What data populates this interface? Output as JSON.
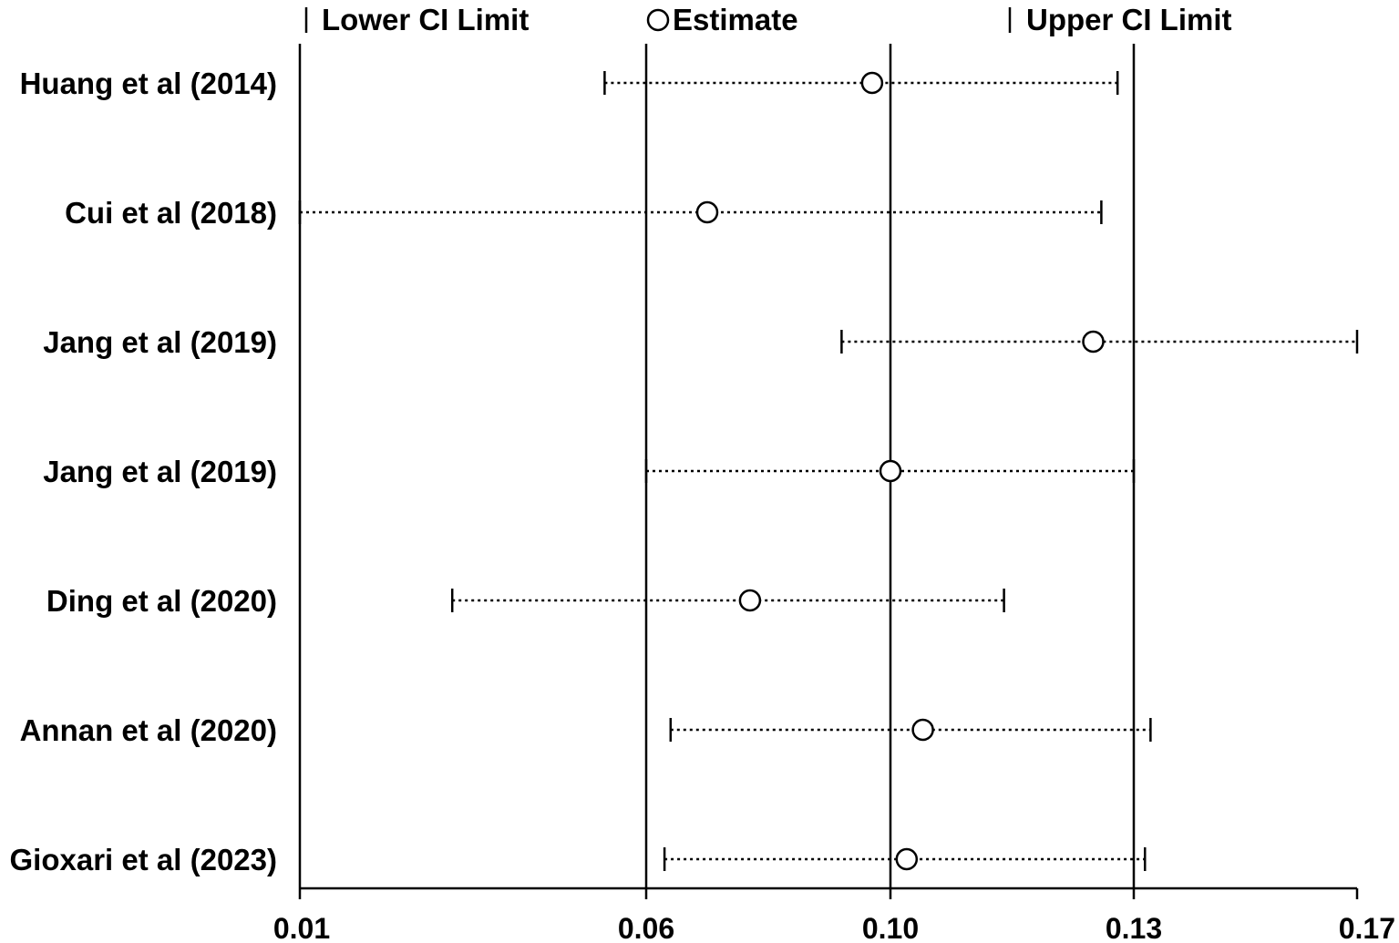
{
  "chart_data": {
    "type": "forest",
    "legend": {
      "lower": "Lower CI Limit",
      "estimate": "Estimate",
      "upper": "Upper CI Limit"
    },
    "studies": [
      {
        "label": "Huang et al (2014)",
        "lower": 0.054,
        "estimate": 0.097,
        "upper": 0.128
      },
      {
        "label": "Cui et al (2018)",
        "lower": 0.01,
        "estimate": 0.07,
        "upper": 0.126
      },
      {
        "label": "Jang et al (2019)",
        "lower": 0.092,
        "estimate": 0.125,
        "upper": 0.17
      },
      {
        "label": "Jang et al (2019)",
        "lower": 0.06,
        "estimate": 0.1,
        "upper": 0.13
      },
      {
        "label": "Ding et al (2020)",
        "lower": 0.032,
        "estimate": 0.077,
        "upper": 0.114
      },
      {
        "label": "Annan et al (2020)",
        "lower": 0.064,
        "estimate": 0.104,
        "upper": 0.133
      },
      {
        "label": "Gioxari et al (2023)",
        "lower": 0.063,
        "estimate": 0.102,
        "upper": 0.132
      }
    ],
    "x_ticks": [
      {
        "value": 0.01,
        "label": "0.01"
      },
      {
        "value": 0.06,
        "label": "0.06"
      },
      {
        "value": 0.1,
        "label": "0.10"
      },
      {
        "value": 0.13,
        "label": "0.13"
      },
      {
        "value": 0.17,
        "label": "0.17"
      }
    ],
    "xlim": [
      0.01,
      0.17
    ],
    "reference_lines": [
      0.06,
      0.1,
      0.13
    ],
    "legend_position": "top"
  }
}
